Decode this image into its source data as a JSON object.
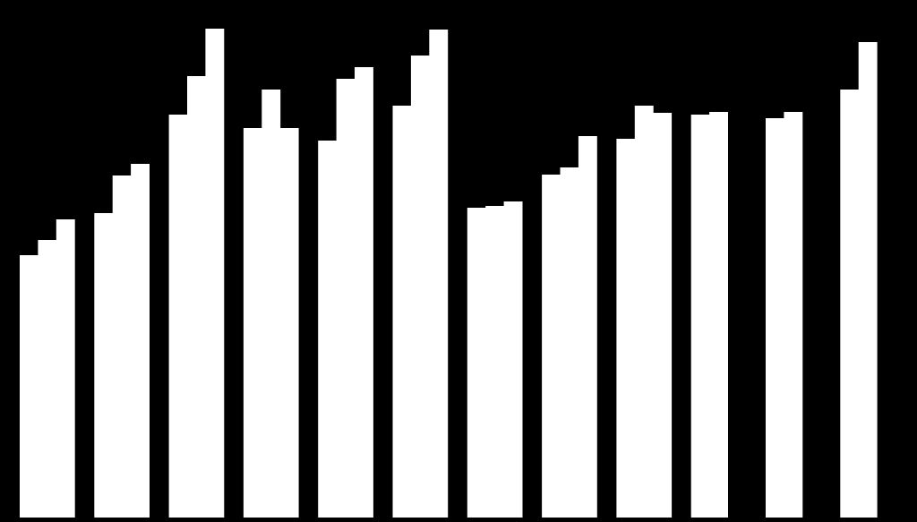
{
  "chart_data": {
    "type": "bar",
    "categories": [
      null,
      null,
      null,
      null,
      null,
      null,
      null,
      null,
      null,
      null,
      null,
      null
    ],
    "series": [
      {
        "color": "#ffffff",
        "values": [
          293,
          340,
          450,
          435,
          421,
          460,
          346,
          383,
          423,
          450,
          446,
          478
        ]
      },
      {
        "color": "#ffffff",
        "values": [
          310,
          382,
          493,
          478,
          490,
          516,
          348,
          391,
          460,
          453,
          453,
          531
        ]
      },
      {
        "color": "#ffffff",
        "values": [
          333,
          395,
          546,
          435,
          503,
          545,
          353,
          426,
          452,
          null,
          null,
          null
        ]
      }
    ],
    "ylim": [
      0,
      578
    ],
    "background": "#000000"
  }
}
